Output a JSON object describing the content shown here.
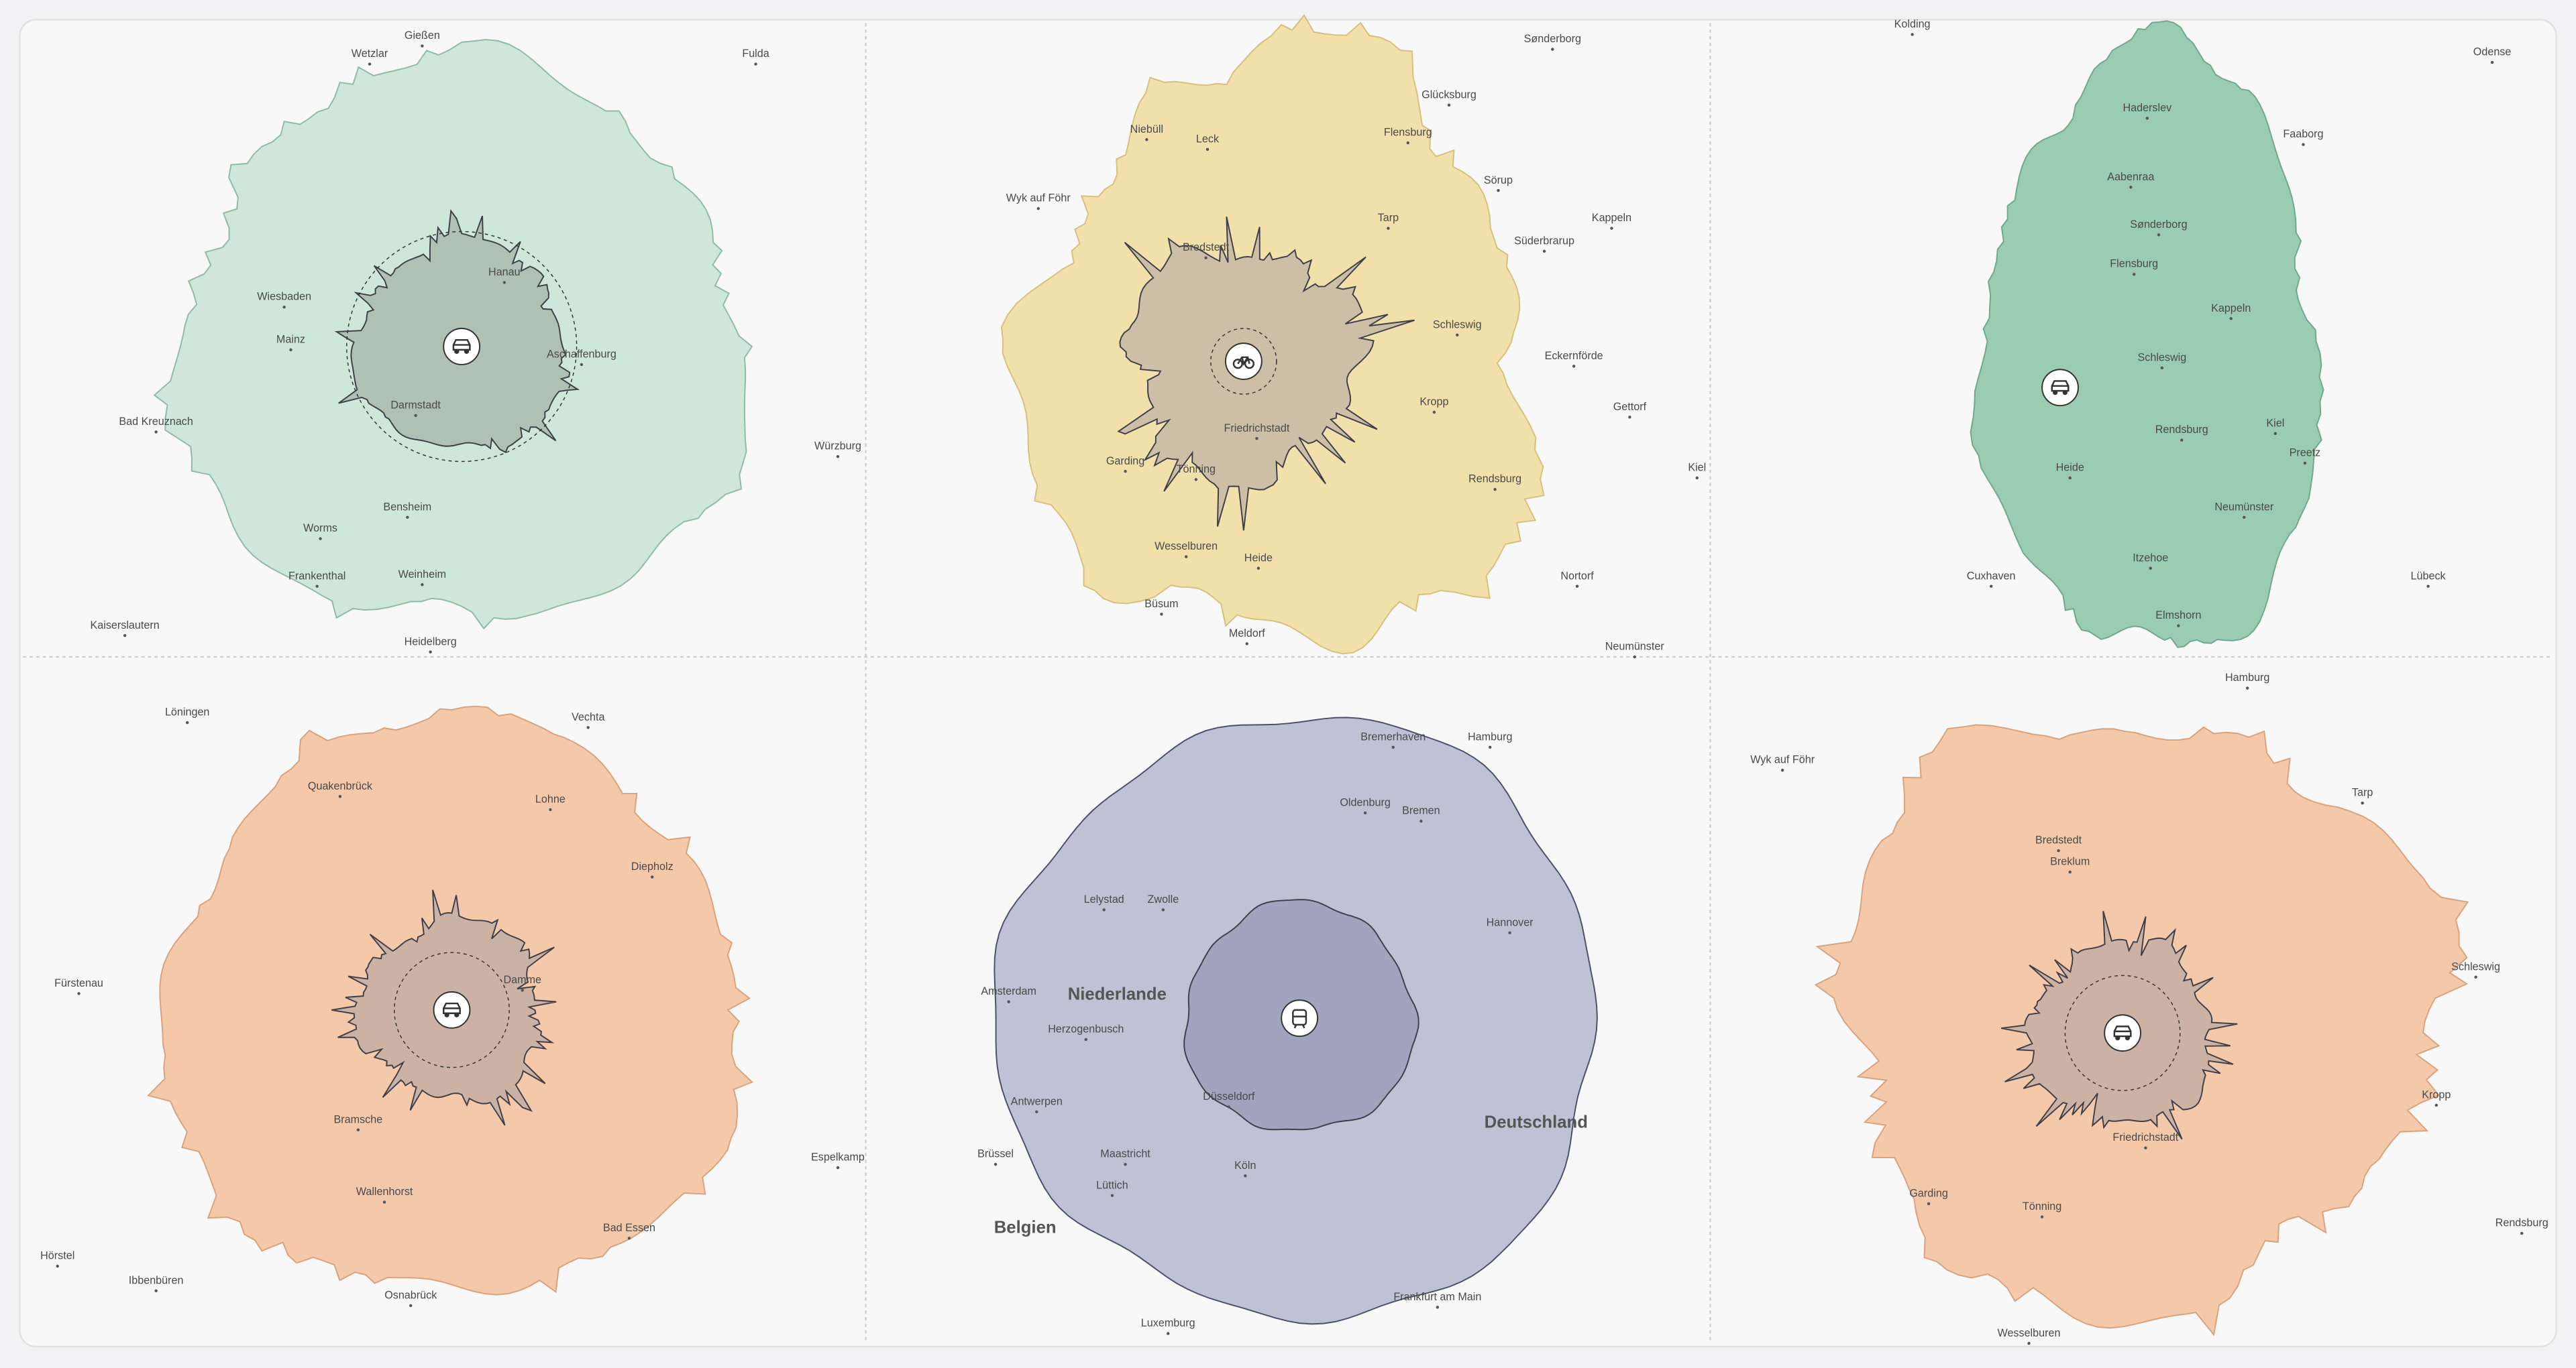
{
  "panels": [
    {
      "color": "#c9e4d6",
      "labels": [
        "Gießen",
        "Wetzlar",
        "Fulda",
        "Wiesbaden",
        "Mainz",
        "Hanau",
        "Aschaffenburg",
        "Darmstadt",
        "Bad Kreuznach",
        "Würzburg",
        "Bensheim",
        "Worms",
        "Frankenthal",
        "Weinheim",
        "Kaiserslautern",
        "Heidelberg"
      ]
    },
    {
      "color": "#f1dda2",
      "labels": [
        "Sønderborg",
        "Glücksburg",
        "Niebüll",
        "Leck",
        "Flensburg",
        "Wyk auf Föhr",
        "Tarp",
        "Sörup",
        "Kappeln",
        "Bredstedt",
        "Süderbrarup",
        "Schleswig",
        "Eckernförde",
        "Kropp",
        "Gettorf",
        "Friedrichstadt",
        "Garding",
        "Tönning",
        "Rendsburg",
        "Kiel",
        "Wesselburen",
        "Heide",
        "Nortorf",
        "Büsum",
        "Meldorf",
        "Neumünster"
      ]
    },
    {
      "color": "#8fc6a9",
      "labels": [
        "Kolding",
        "Odense",
        "Haderslev",
        "Faaborg",
        "Aabenraa",
        "Sønderborg",
        "Flensburg",
        "Kappeln",
        "Schleswig",
        "Kiel",
        "Rendsburg",
        "Preetz",
        "Heide",
        "Neumünster",
        "Itzehoe",
        "Cuxhaven",
        "Lübeck",
        "Elmshorn"
      ]
    },
    {
      "color": "#f3c3a0",
      "labels": [
        "Löningen",
        "Vechta",
        "Quakenbrück",
        "Lohne",
        "Diepholz",
        "Fürstenau",
        "Damme",
        "Bramsche",
        "Espelkamp",
        "Wallenhorst",
        "Bad Essen",
        "Hörstel",
        "Ibbenbüren",
        "Osnabrück"
      ]
    },
    {
      "color": "#b8bacf",
      "labels": [
        "Bremerhaven",
        "Hamburg",
        "Oldenburg",
        "Bremen",
        "Lelystad",
        "Zwolle",
        "Hannover",
        "Amsterdam",
        "Niederlande",
        "Herzogenbusch",
        "Antwerpen",
        "Düsseldorf",
        "Deutschland",
        "Brüssel",
        "Maastricht",
        "Köln",
        "Lüttich",
        "Belgien",
        "Frankfurt am Main",
        "Luxemburg"
      ]
    },
    {
      "color": "#f3c3a0",
      "labels": [
        "Hamburg",
        "Wyk auf Föhr",
        "Tarp",
        "Bredstedt",
        "Breklum",
        "Schleswig",
        "Kropp",
        "Friedrichstadt",
        "Garding",
        "Tönning",
        "Rendsburg",
        "Wesselburen"
      ]
    }
  ]
}
